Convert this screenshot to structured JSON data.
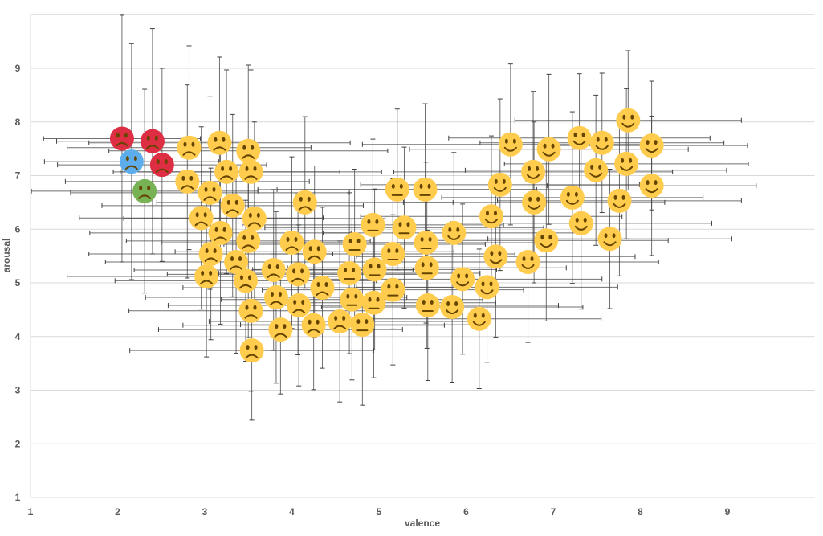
{
  "chart_data": {
    "type": "scatter",
    "title": "",
    "xlabel": "valence",
    "ylabel": "arousal",
    "xlim": [
      1,
      10
    ],
    "ylim": [
      1,
      10
    ],
    "x_ticks": [
      "1",
      "2",
      "3",
      "4",
      "5",
      "6",
      "7",
      "8",
      "9"
    ],
    "y_ticks": [
      "1",
      "2",
      "3",
      "4",
      "5",
      "6",
      "7",
      "8",
      "9"
    ],
    "grid": "horizontal",
    "colors": {
      "yellow": "#FFCC4D",
      "red": "#DD2E44",
      "blue": "#5DADEC",
      "green": "#77B255",
      "marker": "#4472C4",
      "errbar": "#404040"
    },
    "point_fields": [
      "valence",
      "arousal",
      "valence_err",
      "arousal_err",
      "emoji",
      "color"
    ],
    "points": [
      [
        2.05,
        7.69,
        0.9,
        2.3,
        "pouting-face",
        "red"
      ],
      [
        2.4,
        7.64,
        1.1,
        2.1,
        "face-with-symbols",
        "red"
      ],
      [
        2.16,
        7.26,
        1.0,
        2.2,
        "cold-face",
        "blue"
      ],
      [
        2.51,
        7.2,
        1.2,
        1.8,
        "hot-face",
        "red"
      ],
      [
        2.31,
        6.71,
        1.3,
        1.9,
        "nauseated-face",
        "green"
      ],
      [
        2.82,
        7.52,
        1.4,
        1.9,
        "tired-face",
        "yellow"
      ],
      [
        3.17,
        7.61,
        1.5,
        1.6,
        "loudly-crying-face",
        "yellow"
      ],
      [
        3.5,
        7.46,
        1.6,
        1.6,
        "screaming-face",
        "yellow"
      ],
      [
        2.8,
        6.89,
        1.4,
        1.8,
        "anxious-face-with-sweat",
        "yellow"
      ],
      [
        3.25,
        7.07,
        1.3,
        1.9,
        "angry-face",
        "yellow"
      ],
      [
        3.53,
        7.07,
        1.5,
        1.9,
        "sad-relieved-face",
        "yellow"
      ],
      [
        3.06,
        6.68,
        1.6,
        1.8,
        "persevering-face",
        "yellow"
      ],
      [
        3.32,
        6.44,
        1.5,
        1.7,
        "confounded-face",
        "yellow"
      ],
      [
        2.96,
        6.21,
        1.4,
        1.7,
        "weary-face",
        "yellow"
      ],
      [
        3.57,
        6.2,
        1.5,
        1.8,
        "tired-face-2",
        "yellow"
      ],
      [
        4.15,
        6.5,
        1.7,
        1.6,
        "exploding-head",
        "yellow"
      ],
      [
        3.18,
        5.93,
        1.5,
        1.7,
        "fearful-face",
        "yellow"
      ],
      [
        3.5,
        5.78,
        1.4,
        1.8,
        "dizzy-face",
        "yellow"
      ],
      [
        4.0,
        5.75,
        1.5,
        1.6,
        "grimacing-face",
        "yellow"
      ],
      [
        4.26,
        5.58,
        1.6,
        1.6,
        "face-with-rolling-eyes",
        "yellow"
      ],
      [
        3.07,
        5.54,
        1.4,
        1.6,
        "disappointed-face",
        "yellow"
      ],
      [
        3.36,
        5.39,
        1.5,
        1.7,
        "frowning-open-mouth",
        "yellow"
      ],
      [
        3.02,
        5.12,
        1.6,
        1.5,
        "expressionless-face",
        "yellow"
      ],
      [
        3.47,
        5.04,
        1.5,
        1.5,
        "neutral-face",
        "yellow"
      ],
      [
        3.79,
        5.24,
        1.6,
        1.5,
        "pensive-face",
        "yellow"
      ],
      [
        4.07,
        5.16,
        1.5,
        1.5,
        "grimace-sweat",
        "yellow"
      ],
      [
        4.66,
        5.18,
        1.5,
        1.5,
        "confused-face",
        "yellow"
      ],
      [
        4.95,
        5.25,
        1.4,
        1.5,
        "unamused-face",
        "yellow"
      ],
      [
        4.72,
        5.72,
        1.5,
        1.4,
        "relieved-face",
        "yellow"
      ],
      [
        4.93,
        6.08,
        1.5,
        1.6,
        "astonished-face",
        "yellow"
      ],
      [
        3.53,
        4.48,
        1.4,
        1.5,
        "frowning-face",
        "yellow"
      ],
      [
        3.82,
        4.73,
        1.5,
        1.6,
        "sad-face",
        "yellow"
      ],
      [
        4.35,
        4.91,
        1.6,
        1.5,
        "face-without-mouth",
        "yellow"
      ],
      [
        4.08,
        4.58,
        1.5,
        1.5,
        "slightly-frowning-face",
        "yellow"
      ],
      [
        4.69,
        4.69,
        1.5,
        1.5,
        "face-with-hand-glasses",
        "yellow"
      ],
      [
        4.94,
        4.63,
        1.4,
        1.4,
        "kissing-face",
        "yellow"
      ],
      [
        5.16,
        4.87,
        1.5,
        1.4,
        "hushed-face",
        "yellow"
      ],
      [
        3.87,
        4.13,
        1.4,
        1.2,
        "worried-face",
        "yellow"
      ],
      [
        4.25,
        4.21,
        1.5,
        1.2,
        "confused-face-2",
        "yellow"
      ],
      [
        4.55,
        4.28,
        1.5,
        1.5,
        "sad-face-2",
        "yellow"
      ],
      [
        4.81,
        4.22,
        1.4,
        1.5,
        "frowning-face-2",
        "yellow"
      ],
      [
        3.54,
        3.74,
        1.4,
        1.3,
        "slightly-frowning-face-2",
        "yellow"
      ],
      [
        5.21,
        6.74,
        1.6,
        1.5,
        "thinking-face",
        "yellow"
      ],
      [
        5.53,
        6.74,
        1.7,
        1.6,
        "zany-face",
        "yellow"
      ],
      [
        5.29,
        6.03,
        1.6,
        1.5,
        "face-with-monocle",
        "yellow"
      ],
      [
        5.54,
        5.75,
        1.5,
        1.5,
        "face-with-tongue",
        "yellow"
      ],
      [
        5.16,
        5.54,
        1.4,
        1.4,
        "hushed-face-2",
        "yellow"
      ],
      [
        5.55,
        5.28,
        1.6,
        1.5,
        "smiling-face-with-sunglasses",
        "yellow"
      ],
      [
        5.86,
        5.93,
        1.5,
        1.5,
        "flushed-face",
        "yellow"
      ],
      [
        5.56,
        4.58,
        1.5,
        1.4,
        "clown-face",
        "yellow"
      ],
      [
        5.84,
        4.55,
        1.5,
        1.4,
        "cowboy-hat-face",
        "yellow"
      ],
      [
        5.96,
        5.07,
        1.6,
        1.4,
        "face-with-hand-over-mouth",
        "yellow"
      ],
      [
        6.24,
        4.92,
        1.5,
        1.4,
        "smirking-face",
        "yellow"
      ],
      [
        6.15,
        4.33,
        1.4,
        1.3,
        "slightly-smiling-face",
        "yellow"
      ],
      [
        6.34,
        5.49,
        1.6,
        1.5,
        "smiling-face-with-halo",
        "yellow"
      ],
      [
        6.29,
        6.24,
        1.5,
        1.5,
        "hugging-face",
        "yellow"
      ],
      [
        6.39,
        6.83,
        1.6,
        1.6,
        "winking-face-with-tongue",
        "yellow"
      ],
      [
        6.51,
        7.58,
        1.7,
        1.5,
        "rolling-on-floor-laughing",
        "yellow"
      ],
      [
        6.78,
        6.5,
        1.5,
        1.5,
        "smiling-face",
        "yellow"
      ],
      [
        6.71,
        5.39,
        1.5,
        1.5,
        "winking-face",
        "yellow"
      ],
      [
        6.92,
        5.79,
        1.4,
        1.5,
        "kissing-face-2",
        "yellow"
      ],
      [
        6.77,
        7.07,
        1.6,
        1.5,
        "face-blowing-kiss",
        "yellow"
      ],
      [
        6.95,
        7.49,
        1.6,
        1.4,
        "kissing-smiling-eyes",
        "yellow"
      ],
      [
        7.22,
        6.59,
        1.5,
        1.6,
        "partying-face",
        "yellow"
      ],
      [
        7.32,
        6.11,
        1.5,
        1.6,
        "grinning-face-big-eyes",
        "yellow"
      ],
      [
        7.3,
        7.7,
        1.5,
        1.2,
        "star-struck",
        "yellow"
      ],
      [
        7.56,
        7.61,
        1.4,
        1.3,
        "grinning-squinting-face",
        "yellow"
      ],
      [
        7.49,
        7.1,
        1.5,
        1.4,
        "relieved-smiling-face",
        "yellow"
      ],
      [
        7.76,
        6.53,
        1.4,
        1.4,
        "smiling-face-smiling-eyes",
        "yellow"
      ],
      [
        7.86,
        8.03,
        1.3,
        1.3,
        "heart-eyes",
        "yellow"
      ],
      [
        7.84,
        7.22,
        1.4,
        1.4,
        "smiling-face-with-hearts",
        "yellow"
      ],
      [
        8.13,
        7.56,
        1.1,
        1.2,
        "beaming-face",
        "yellow"
      ],
      [
        8.13,
        6.81,
        1.2,
        1.3,
        "blushing-face",
        "yellow"
      ],
      [
        7.65,
        5.82,
        1.4,
        1.3,
        "grinning-face",
        "yellow"
      ]
    ]
  }
}
